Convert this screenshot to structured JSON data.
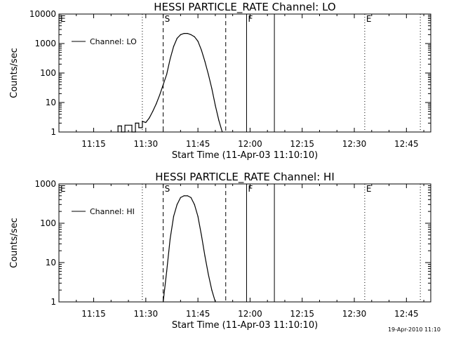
{
  "footer_stamp": "19-Apr-2010 11:10",
  "chart_data": [
    {
      "type": "line",
      "title": "HESSI PARTICLE_RATE Channel: LO",
      "xlabel": "Start Time (11-Apr-03 11:10:10)",
      "ylabel": "Counts/sec",
      "y_scale": "log",
      "ylim": [
        1,
        10000
      ],
      "y_ticks": [
        1,
        10,
        100,
        1000,
        10000
      ],
      "y_tick_labels": [
        "1",
        "10",
        "100",
        "1000",
        "10000"
      ],
      "xlim": [
        "11:05",
        "12:52"
      ],
      "x_ticks": [
        "11:15",
        "11:30",
        "11:45",
        "12:00",
        "12:15",
        "12:30",
        "12:45"
      ],
      "legend": {
        "position": "top-left",
        "entries": [
          "Channel: LO"
        ]
      },
      "markers": [
        {
          "label": "E",
          "time": "11:05",
          "style": "dotted"
        },
        {
          "label": "",
          "time": "11:29",
          "style": "dotted"
        },
        {
          "label": "S",
          "time": "11:35",
          "style": "dashed"
        },
        {
          "label": "",
          "time": "11:53",
          "style": "dashed"
        },
        {
          "label": "F",
          "time": "11:59",
          "style": "solid"
        },
        {
          "label": "",
          "time": "12:07",
          "style": "solid"
        },
        {
          "label": "E",
          "time": "12:33",
          "style": "dotted"
        },
        {
          "label": "",
          "time": "12:49",
          "style": "dotted"
        }
      ],
      "series": [
        {
          "name": "Channel: LO",
          "x": [
            "11:22",
            "11:22",
            "11:23",
            "11:23",
            "11:24",
            "11:24",
            "11:26",
            "11:26",
            "11:27",
            "11:27",
            "11:28",
            "11:28",
            "11:29",
            "11:29",
            "11:30",
            "11:31",
            "11:32",
            "11:33",
            "11:34",
            "11:35",
            "11:36",
            "11:37",
            "11:38",
            "11:39",
            "11:40",
            "11:41",
            "11:42",
            "11:43",
            "11:44",
            "11:45",
            "11:46",
            "11:47",
            "11:48",
            "11:49",
            "11:50",
            "11:51",
            "11:52"
          ],
          "y": [
            1,
            1.6,
            1.6,
            1,
            1,
            1.7,
            1.7,
            1,
            1,
            2,
            2,
            1.4,
            1.4,
            2.3,
            2.1,
            3,
            5,
            9,
            18,
            40,
            90,
            300,
            800,
            1500,
            2000,
            2200,
            2200,
            2000,
            1700,
            1200,
            600,
            250,
            90,
            30,
            8,
            2.5,
            1
          ]
        }
      ]
    },
    {
      "type": "line",
      "title": "HESSI PARTICLE_RATE Channel: HI",
      "xlabel": "Start Time (11-Apr-03 11:10:10)",
      "ylabel": "Counts/sec",
      "y_scale": "log",
      "ylim": [
        1,
        1000
      ],
      "y_ticks": [
        1,
        10,
        100,
        1000
      ],
      "y_tick_labels": [
        "1",
        "10",
        "100",
        "1000"
      ],
      "xlim": [
        "11:05",
        "12:52"
      ],
      "x_ticks": [
        "11:15",
        "11:30",
        "11:45",
        "12:00",
        "12:15",
        "12:30",
        "12:45"
      ],
      "legend": {
        "position": "top-left",
        "entries": [
          "Channel: HI"
        ]
      },
      "markers": [
        {
          "label": "E",
          "time": "11:05",
          "style": "dotted"
        },
        {
          "label": "",
          "time": "11:29",
          "style": "dotted"
        },
        {
          "label": "S",
          "time": "11:35",
          "style": "dashed"
        },
        {
          "label": "",
          "time": "11:53",
          "style": "dashed"
        },
        {
          "label": "F",
          "time": "11:59",
          "style": "solid"
        },
        {
          "label": "",
          "time": "12:07",
          "style": "solid"
        },
        {
          "label": "E",
          "time": "12:33",
          "style": "dotted"
        },
        {
          "label": "",
          "time": "12:49",
          "style": "dotted"
        }
      ],
      "series": [
        {
          "name": "Channel: HI",
          "x": [
            "11:35",
            "11:36",
            "11:37",
            "11:38",
            "11:39",
            "11:40",
            "11:41",
            "11:42",
            "11:43",
            "11:44",
            "11:45",
            "11:46",
            "11:47",
            "11:48",
            "11:49",
            "11:50"
          ],
          "y": [
            1,
            6,
            40,
            150,
            300,
            450,
            500,
            500,
            450,
            300,
            150,
            50,
            15,
            5,
            2,
            1
          ]
        }
      ]
    }
  ]
}
